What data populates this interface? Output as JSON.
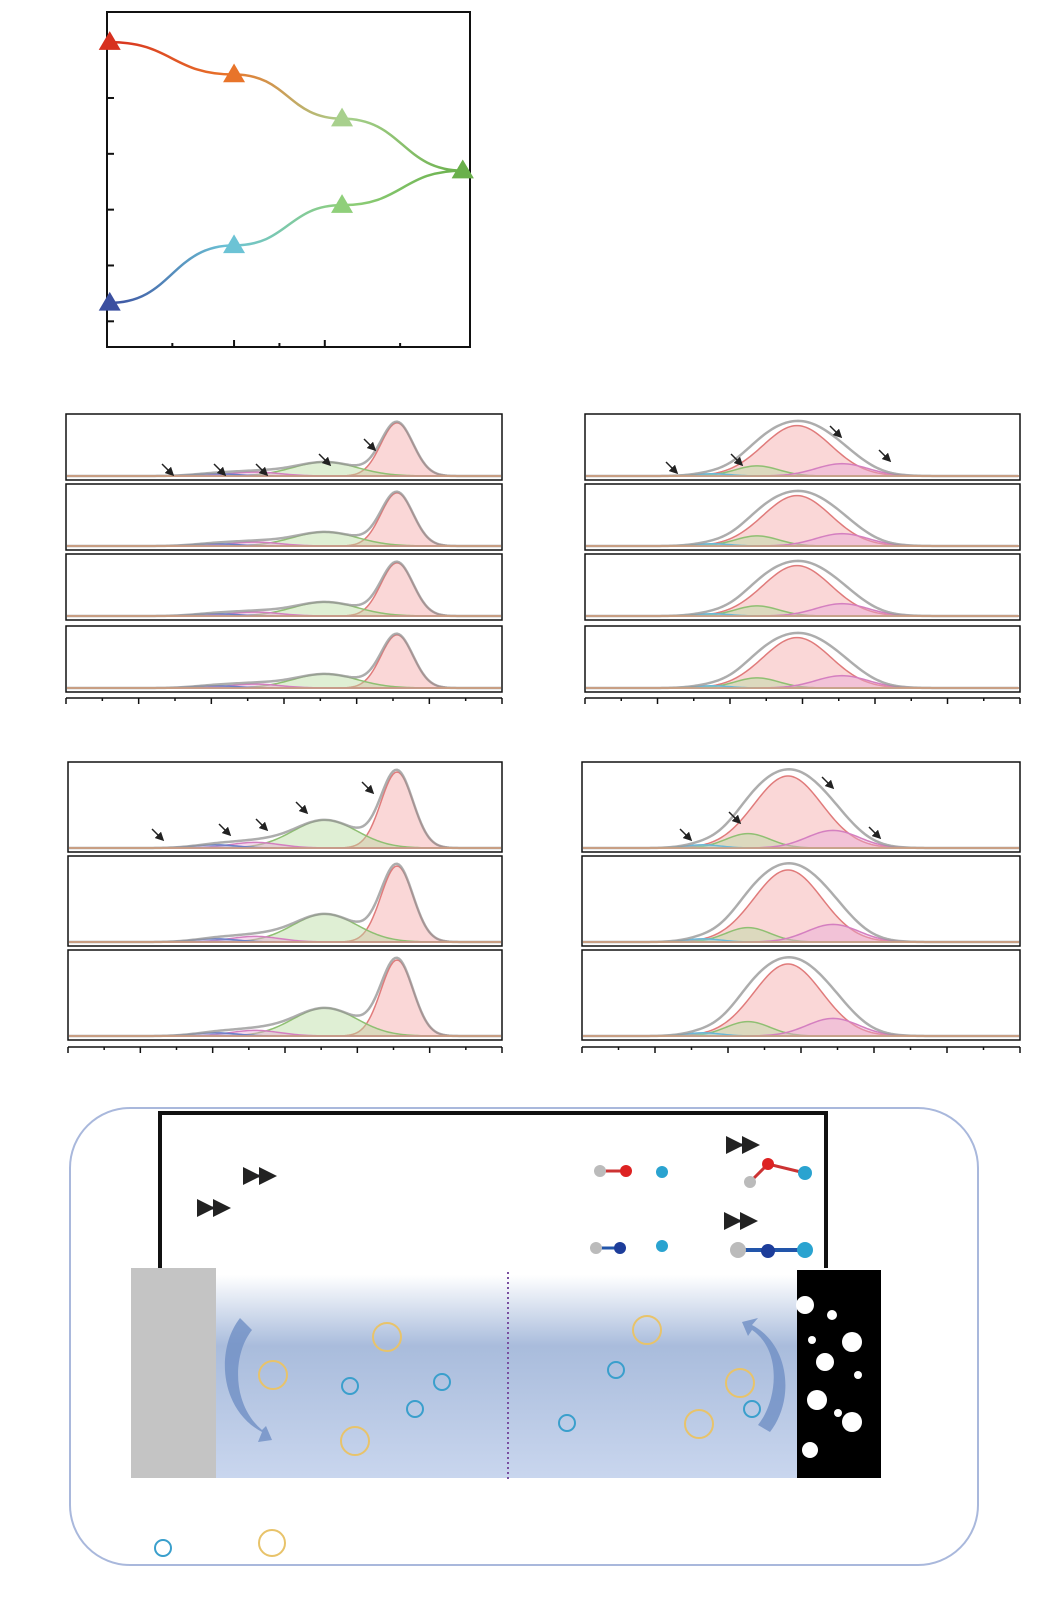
{
  "chart_data": {
    "type": "line",
    "x": [
      0.03,
      1.4,
      2.59,
      3.92
    ],
    "xlim": [
      0,
      4
    ],
    "ylim": [
      0,
      6
    ],
    "xticks": [
      0.72,
      1.4,
      1.9,
      2.4,
      3.23
    ],
    "yticks": [
      0.46,
      1.46,
      2.46,
      3.46,
      4.46,
      5.46
    ],
    "series": [
      {
        "colors": [
          "#d7301f",
          "#e8742a",
          "#a8d08d",
          "#6ab04c"
        ],
        "values": [
          5.46,
          4.88,
          4.09,
          3.16
        ]
      },
      {
        "colors": [
          "#3b4fa0",
          "#6cc3d5",
          "#8fcf7a",
          "#6ab04c"
        ],
        "values": [
          0.79,
          1.82,
          2.54,
          3.16
        ]
      }
    ]
  }
}
